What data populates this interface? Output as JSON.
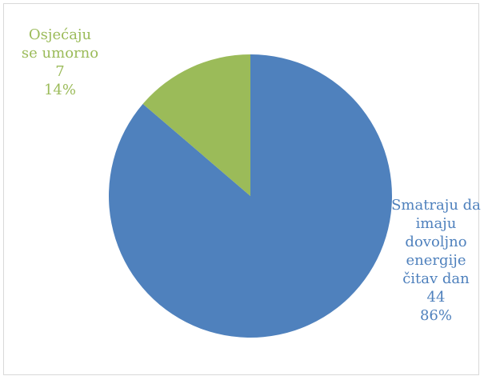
{
  "chart_data": {
    "type": "pie",
    "categories": [
      "Smatraju da imaju dovoljno energije čitav dan",
      "Osjećaju se umorno"
    ],
    "values": [
      44,
      7
    ],
    "percent_labels": [
      "86%",
      "14%"
    ],
    "colors": [
      "#4f81bd",
      "#9bbb59"
    ]
  }
}
